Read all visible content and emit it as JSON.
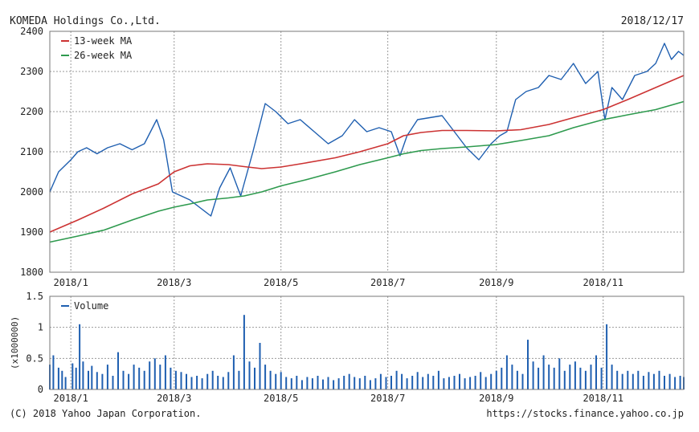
{
  "header": {
    "company": "KOMEDA Holdings Co.,Ltd.",
    "date": "2018/12/17"
  },
  "footer": {
    "copyright": "(C) 2018 Yahoo Japan Corporation.",
    "source_url": "https://stocks.finance.yahoo.co.jp"
  },
  "colors": {
    "price": "#1f5fb0",
    "ma13": "#cc3333",
    "ma26": "#2e9a4e",
    "volume": "#1f5fb0",
    "grid": "#9a9a9a",
    "frame": "#777777"
  },
  "chart_data": [
    {
      "type": "line",
      "title": "",
      "xlabel": "",
      "ylabel": "",
      "ylim": [
        1800,
        2400
      ],
      "y_ticks": [
        "2400",
        "2300",
        "2200",
        "2100",
        "2000",
        "1900",
        "1800"
      ],
      "x_ticks": [
        "2018/1",
        "2018/3",
        "2018/5",
        "2018/7",
        "2018/9",
        "2018/11"
      ],
      "grid": true,
      "legend_placement": "top-left",
      "legend": [
        "13-week MA",
        "26-week MA"
      ],
      "series": [
        {
          "name": "",
          "color_key": "price",
          "x": [
            "2017-12-20",
            "2017-12-25",
            "2018-01-01",
            "2018-01-05",
            "2018-01-10",
            "2018-01-16",
            "2018-01-22",
            "2018-01-29",
            "2018-02-05",
            "2018-02-12",
            "2018-02-19",
            "2018-02-23",
            "2018-02-28",
            "2018-03-05",
            "2018-03-10",
            "2018-03-16",
            "2018-03-22",
            "2018-03-27",
            "2018-04-02",
            "2018-04-08",
            "2018-04-15",
            "2018-04-22",
            "2018-04-28",
            "2018-05-05",
            "2018-05-12",
            "2018-05-20",
            "2018-05-28",
            "2018-06-05",
            "2018-06-12",
            "2018-06-19",
            "2018-06-26",
            "2018-07-03",
            "2018-07-08",
            "2018-07-12",
            "2018-07-18",
            "2018-07-25",
            "2018-08-01",
            "2018-08-08",
            "2018-08-15",
            "2018-08-22",
            "2018-08-29",
            "2018-09-03",
            "2018-09-07",
            "2018-09-12",
            "2018-09-18",
            "2018-09-25",
            "2018-10-01",
            "2018-10-08",
            "2018-10-15",
            "2018-10-22",
            "2018-10-29",
            "2018-11-02",
            "2018-11-06",
            "2018-11-12",
            "2018-11-19",
            "2018-11-26",
            "2018-12-01",
            "2018-12-06",
            "2018-12-10",
            "2018-12-14",
            "2018-12-17"
          ],
          "values": [
            2000,
            2050,
            2080,
            2100,
            2110,
            2095,
            2110,
            2120,
            2105,
            2120,
            2180,
            2130,
            2000,
            1990,
            1980,
            1960,
            1940,
            2010,
            2060,
            1990,
            2100,
            2220,
            2200,
            2170,
            2180,
            2150,
            2120,
            2140,
            2180,
            2150,
            2160,
            2150,
            2090,
            2140,
            2180,
            2185,
            2190,
            2150,
            2110,
            2080,
            2120,
            2140,
            2150,
            2230,
            2250,
            2260,
            2290,
            2280,
            2320,
            2270,
            2300,
            2180,
            2260,
            2230,
            2290,
            2300,
            2320,
            2370,
            2330,
            2350,
            2340
          ]
        },
        {
          "name": "13-week MA",
          "color_key": "ma13",
          "x": [
            "2017-12-20",
            "2018-01-05",
            "2018-01-20",
            "2018-02-05",
            "2018-02-20",
            "2018-03-01",
            "2018-03-10",
            "2018-03-20",
            "2018-04-01",
            "2018-04-10",
            "2018-04-20",
            "2018-05-01",
            "2018-05-15",
            "2018-06-01",
            "2018-06-15",
            "2018-07-01",
            "2018-07-10",
            "2018-07-20",
            "2018-08-01",
            "2018-08-15",
            "2018-09-01",
            "2018-09-15",
            "2018-10-01",
            "2018-10-15",
            "2018-11-01",
            "2018-11-15",
            "2018-12-01",
            "2018-12-17"
          ],
          "values": [
            1900,
            1930,
            1960,
            1995,
            2020,
            2050,
            2065,
            2070,
            2068,
            2063,
            2058,
            2062,
            2072,
            2085,
            2100,
            2120,
            2140,
            2148,
            2153,
            2153,
            2152,
            2155,
            2168,
            2185,
            2205,
            2230,
            2260,
            2290
          ]
        },
        {
          "name": "26-week MA",
          "color_key": "ma26",
          "x": [
            "2017-12-20",
            "2018-01-05",
            "2018-01-20",
            "2018-02-05",
            "2018-02-20",
            "2018-03-01",
            "2018-03-10",
            "2018-03-20",
            "2018-04-01",
            "2018-04-10",
            "2018-04-20",
            "2018-05-01",
            "2018-05-15",
            "2018-06-01",
            "2018-06-15",
            "2018-07-01",
            "2018-07-10",
            "2018-07-20",
            "2018-08-01",
            "2018-08-15",
            "2018-09-01",
            "2018-09-15",
            "2018-10-01",
            "2018-10-15",
            "2018-11-01",
            "2018-11-15",
            "2018-12-01",
            "2018-12-17"
          ],
          "values": [
            1875,
            1890,
            1905,
            1930,
            1952,
            1962,
            1970,
            1980,
            1985,
            1990,
            2000,
            2015,
            2030,
            2050,
            2068,
            2085,
            2095,
            2103,
            2108,
            2112,
            2118,
            2128,
            2140,
            2160,
            2180,
            2192,
            2205,
            2225
          ]
        }
      ]
    },
    {
      "type": "bar",
      "title": "",
      "ylabel": "(x1000000)",
      "ylim": [
        0,
        1.5
      ],
      "y_ticks": [
        "1.5",
        "1",
        "0.5",
        "0"
      ],
      "x_ticks": [
        "2018/1",
        "2018/3",
        "2018/5",
        "2018/7",
        "2018/9",
        "2018/11"
      ],
      "grid": true,
      "legend": [
        "Volume"
      ],
      "legend_placement": "top-left",
      "series": [
        {
          "name": "Volume",
          "color_key": "volume",
          "x": [
            "2017-12-20",
            "2017-12-22",
            "2017-12-25",
            "2017-12-27",
            "2017-12-29",
            "2018-01-02",
            "2018-01-04",
            "2018-01-06",
            "2018-01-08",
            "2018-01-11",
            "2018-01-13",
            "2018-01-16",
            "2018-01-19",
            "2018-01-22",
            "2018-01-25",
            "2018-01-28",
            "2018-01-31",
            "2018-02-03",
            "2018-02-06",
            "2018-02-09",
            "2018-02-12",
            "2018-02-15",
            "2018-02-18",
            "2018-02-21",
            "2018-02-24",
            "2018-02-27",
            "2018-03-02",
            "2018-03-05",
            "2018-03-08",
            "2018-03-11",
            "2018-03-14",
            "2018-03-17",
            "2018-03-20",
            "2018-03-23",
            "2018-03-26",
            "2018-03-29",
            "2018-04-01",
            "2018-04-04",
            "2018-04-07",
            "2018-04-10",
            "2018-04-13",
            "2018-04-16",
            "2018-04-19",
            "2018-04-22",
            "2018-04-25",
            "2018-04-28",
            "2018-05-01",
            "2018-05-04",
            "2018-05-07",
            "2018-05-10",
            "2018-05-13",
            "2018-05-16",
            "2018-05-19",
            "2018-05-22",
            "2018-05-25",
            "2018-05-28",
            "2018-05-31",
            "2018-06-03",
            "2018-06-06",
            "2018-06-09",
            "2018-06-12",
            "2018-06-15",
            "2018-06-18",
            "2018-06-21",
            "2018-06-24",
            "2018-06-27",
            "2018-06-30",
            "2018-07-03",
            "2018-07-06",
            "2018-07-09",
            "2018-07-12",
            "2018-07-15",
            "2018-07-18",
            "2018-07-21",
            "2018-07-24",
            "2018-07-27",
            "2018-07-30",
            "2018-08-02",
            "2018-08-05",
            "2018-08-08",
            "2018-08-11",
            "2018-08-14",
            "2018-08-17",
            "2018-08-20",
            "2018-08-23",
            "2018-08-26",
            "2018-08-29",
            "2018-09-01",
            "2018-09-04",
            "2018-09-07",
            "2018-09-10",
            "2018-09-13",
            "2018-09-16",
            "2018-09-19",
            "2018-09-22",
            "2018-09-25",
            "2018-09-28",
            "2018-10-01",
            "2018-10-04",
            "2018-10-07",
            "2018-10-10",
            "2018-10-13",
            "2018-10-16",
            "2018-10-19",
            "2018-10-22",
            "2018-10-25",
            "2018-10-28",
            "2018-10-31",
            "2018-11-03",
            "2018-11-06",
            "2018-11-09",
            "2018-11-12",
            "2018-11-15",
            "2018-11-18",
            "2018-11-21",
            "2018-11-24",
            "2018-11-27",
            "2018-11-30",
            "2018-12-03",
            "2018-12-06",
            "2018-12-09",
            "2018-12-12",
            "2018-12-15",
            "2018-12-17"
          ],
          "values": [
            0.4,
            0.55,
            0.35,
            0.3,
            0.2,
            0.42,
            0.35,
            1.05,
            0.45,
            0.3,
            0.38,
            0.28,
            0.25,
            0.4,
            0.22,
            0.6,
            0.3,
            0.25,
            0.4,
            0.35,
            0.3,
            0.45,
            0.5,
            0.4,
            0.55,
            0.35,
            0.3,
            0.28,
            0.25,
            0.2,
            0.22,
            0.18,
            0.25,
            0.3,
            0.22,
            0.2,
            0.28,
            0.55,
            0.3,
            1.2,
            0.45,
            0.35,
            0.75,
            0.4,
            0.3,
            0.25,
            0.28,
            0.2,
            0.18,
            0.22,
            0.15,
            0.2,
            0.18,
            0.22,
            0.16,
            0.2,
            0.15,
            0.18,
            0.22,
            0.25,
            0.2,
            0.18,
            0.22,
            0.15,
            0.18,
            0.25,
            0.2,
            0.22,
            0.3,
            0.25,
            0.18,
            0.22,
            0.28,
            0.2,
            0.25,
            0.22,
            0.3,
            0.18,
            0.2,
            0.22,
            0.25,
            0.18,
            0.2,
            0.22,
            0.28,
            0.2,
            0.25,
            0.3,
            0.35,
            0.55,
            0.4,
            0.3,
            0.25,
            0.8,
            0.45,
            0.35,
            0.55,
            0.4,
            0.35,
            0.5,
            0.3,
            0.4,
            0.45,
            0.35,
            0.3,
            0.4,
            0.55,
            0.35,
            1.05,
            0.4,
            0.3,
            0.25,
            0.3,
            0.25,
            0.3,
            0.22,
            0.28,
            0.25,
            0.3,
            0.22,
            0.25,
            0.2,
            0.22,
            0.2
          ]
        }
      ]
    }
  ]
}
